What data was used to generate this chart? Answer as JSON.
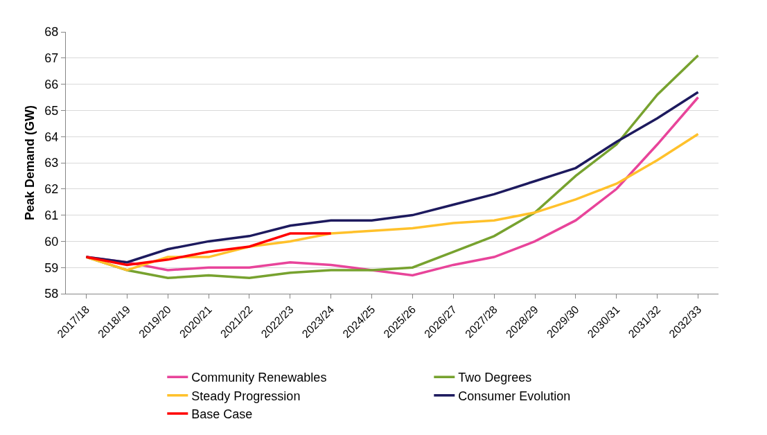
{
  "chart_data": {
    "type": "line",
    "ylabel": "Peak Demand (GW)",
    "categories": [
      "2017/18",
      "2018/19",
      "2019/20",
      "2020/21",
      "2021/22",
      "2022/23",
      "2023/24",
      "2024/25",
      "2025/26",
      "2026/27",
      "2027/28",
      "2028/29",
      "2029/30",
      "2030/31",
      "2031/32",
      "2032/33"
    ],
    "series": [
      {
        "name": "Community Renewables",
        "color": "#e8449a",
        "values": [
          59.4,
          59.2,
          58.9,
          59.0,
          59.0,
          59.2,
          59.1,
          58.9,
          58.7,
          59.1,
          59.4,
          60.0,
          60.8,
          62.0,
          63.7,
          65.5
        ]
      },
      {
        "name": "Two Degrees",
        "color": "#77a22f",
        "values": [
          59.4,
          58.9,
          58.6,
          58.7,
          58.6,
          58.8,
          58.9,
          58.9,
          59.0,
          59.6,
          60.2,
          61.1,
          62.5,
          63.7,
          65.6,
          67.1
        ]
      },
      {
        "name": "Steady Progression",
        "color": "#ffc12b",
        "values": [
          59.4,
          58.9,
          59.4,
          59.4,
          59.8,
          60.0,
          60.3,
          60.4,
          60.5,
          60.7,
          60.8,
          61.1,
          61.6,
          62.2,
          63.1,
          64.1
        ]
      },
      {
        "name": "Consumer Evolution",
        "color": "#1d1a5e",
        "values": [
          59.4,
          59.2,
          59.7,
          60.0,
          60.2,
          60.6,
          60.8,
          60.8,
          61.0,
          61.4,
          61.8,
          62.3,
          62.8,
          63.8,
          64.7,
          65.7
        ]
      },
      {
        "name": "Base Case",
        "color": "#ff0000",
        "values": [
          59.4,
          59.1,
          59.3,
          59.6,
          59.8,
          60.3,
          60.3,
          null,
          null,
          null,
          null,
          null,
          null,
          null,
          null,
          null
        ]
      }
    ],
    "ylim": [
      58,
      68
    ],
    "yticks": [
      58,
      59,
      60,
      61,
      62,
      63,
      64,
      65,
      66,
      67,
      68
    ],
    "grid": "y",
    "legend": "bottom",
    "marker": "none",
    "line_style": "solid"
  }
}
